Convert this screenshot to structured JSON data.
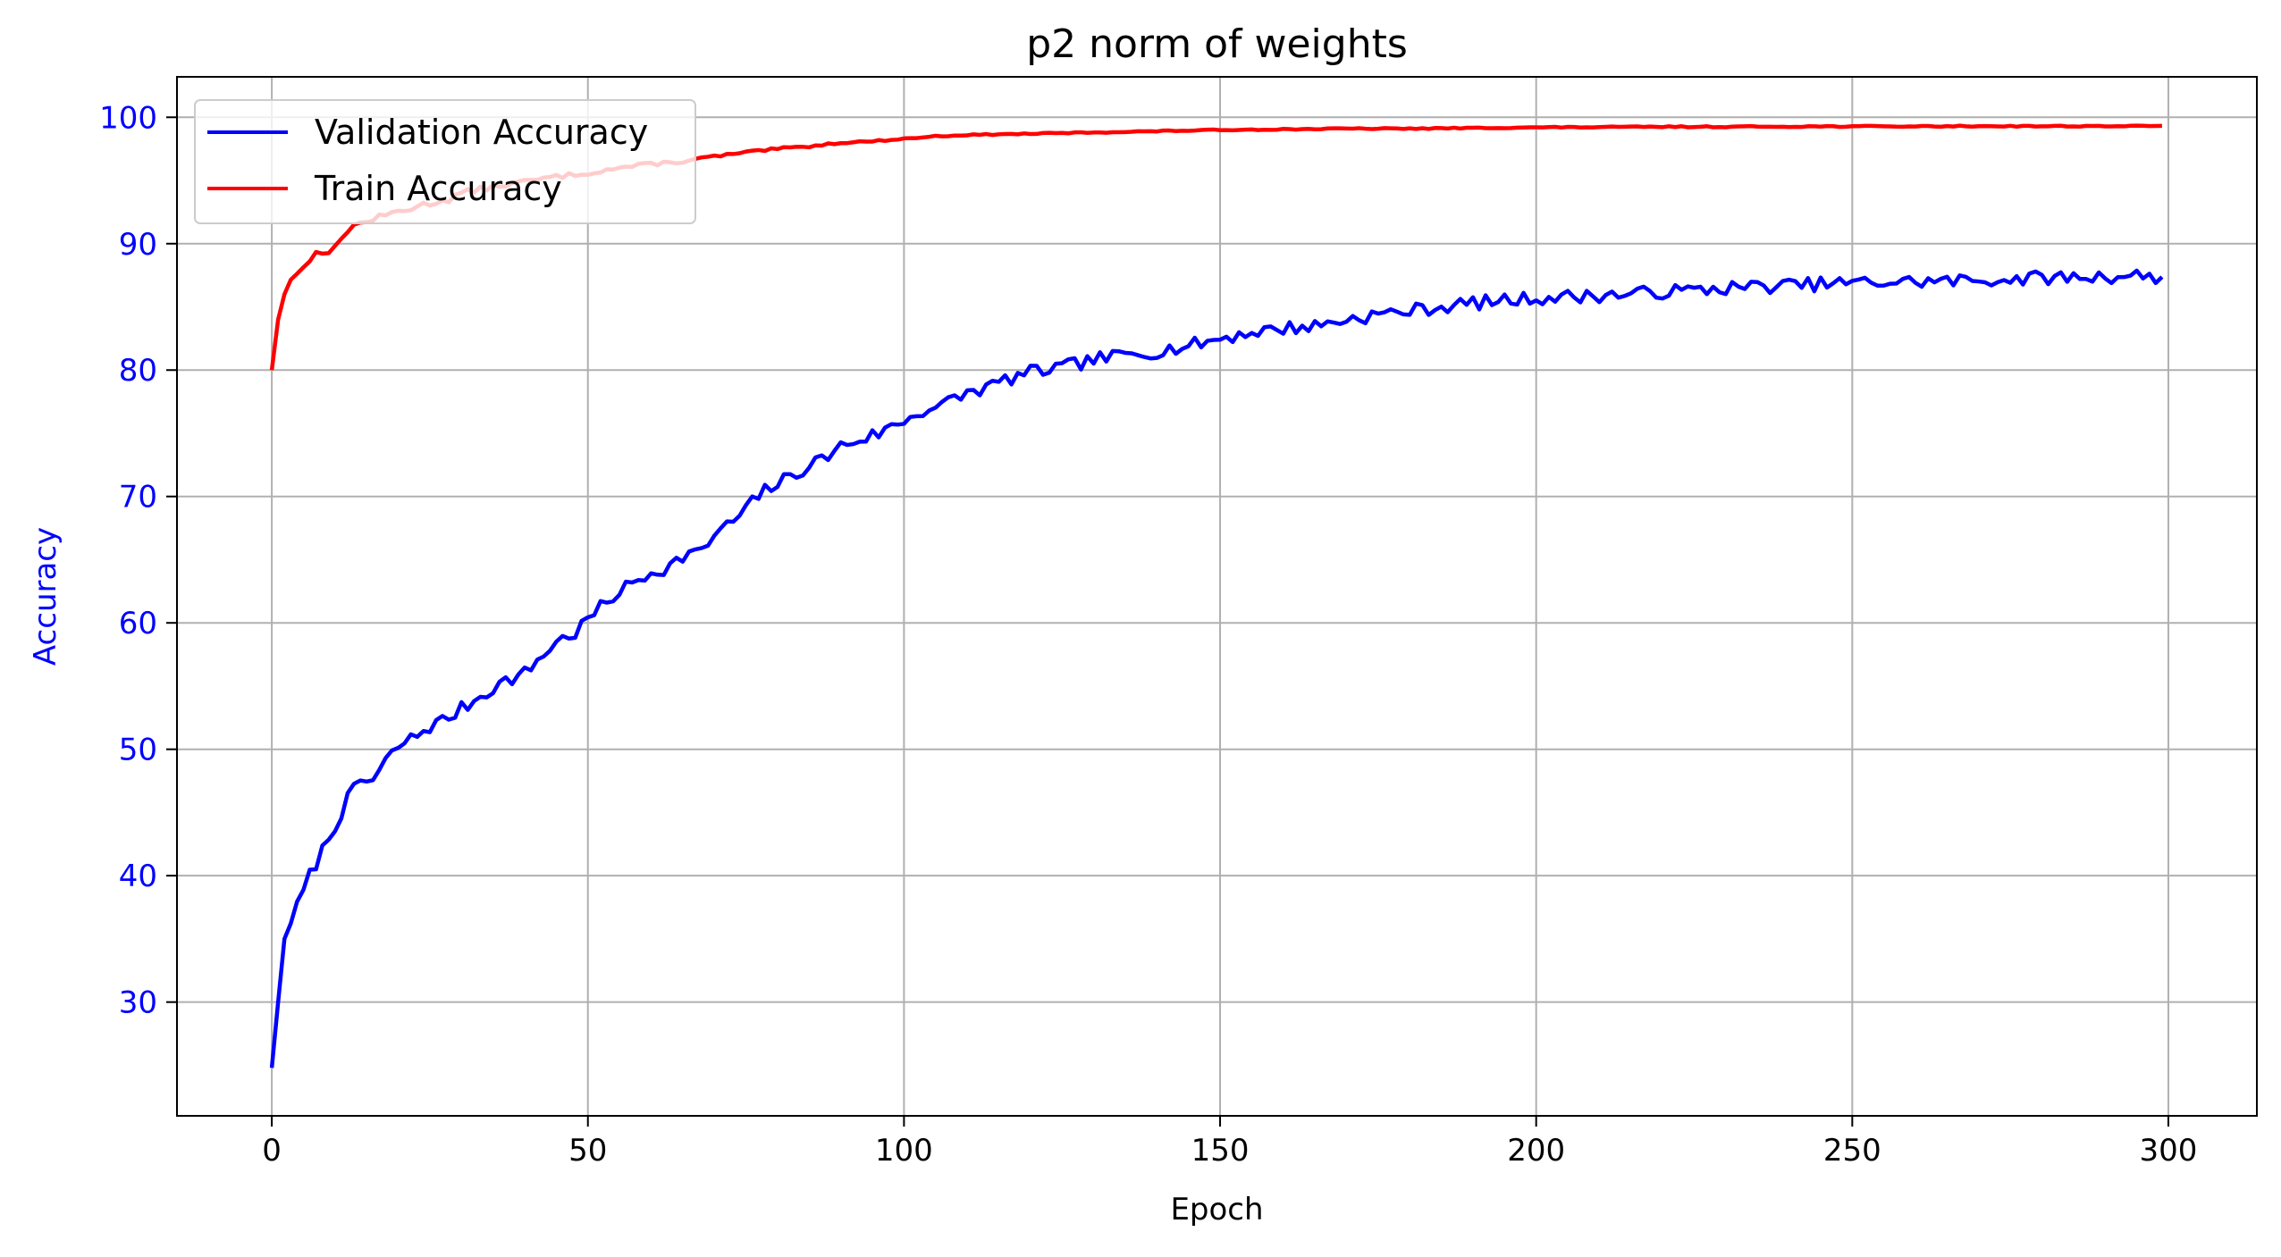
{
  "colors": {
    "validation": "#0000ff",
    "train": "#ff0000",
    "ytick": "#0000ff",
    "ylabel": "#0000ff",
    "grid": "#b0b0b0"
  },
  "chart_data": {
    "type": "line",
    "title": "p2 norm of weights",
    "xlabel": "Epoch",
    "ylabel": "Accuracy",
    "xlim": [
      -15,
      314
    ],
    "ylim": [
      21,
      103.2
    ],
    "xticks": [
      0,
      50,
      100,
      150,
      200,
      250,
      300
    ],
    "yticks": [
      30,
      40,
      50,
      60,
      70,
      80,
      90,
      100
    ],
    "xtick_labels": [
      "0",
      "50",
      "100",
      "150",
      "200",
      "250",
      "300"
    ],
    "ytick_labels": [
      "30",
      "40",
      "50",
      "60",
      "70",
      "80",
      "90",
      "100"
    ],
    "grid": true,
    "legend_position": "upper-left",
    "epochs": 300,
    "series": [
      {
        "name": "Validation Accuracy",
        "color": "#0000ff",
        "anchors": [
          [
            0,
            24.8
          ],
          [
            1,
            30
          ],
          [
            2,
            35
          ],
          [
            3,
            36.5
          ],
          [
            4,
            37.5
          ],
          [
            6,
            40
          ],
          [
            8,
            42
          ],
          [
            10,
            44
          ],
          [
            12,
            46
          ],
          [
            14,
            47.5
          ],
          [
            16,
            47.5
          ],
          [
            18,
            49
          ],
          [
            20,
            50.2
          ],
          [
            22,
            50.8
          ],
          [
            25,
            51.8
          ],
          [
            28,
            52.5
          ],
          [
            30,
            53.2
          ],
          [
            33,
            54.2
          ],
          [
            36,
            55.2
          ],
          [
            40,
            56
          ],
          [
            45,
            58.5
          ],
          [
            48,
            59.2
          ],
          [
            50,
            60.3
          ],
          [
            55,
            62.5
          ],
          [
            60,
            64
          ],
          [
            63,
            64.5
          ],
          [
            66,
            65.6
          ],
          [
            68,
            65.5
          ],
          [
            70,
            67
          ],
          [
            73,
            68
          ],
          [
            75,
            69
          ],
          [
            78,
            70.5
          ],
          [
            80,
            71
          ],
          [
            83,
            71.8
          ],
          [
            85,
            72.5
          ],
          [
            88,
            73.2
          ],
          [
            90,
            74
          ],
          [
            93,
            74.5
          ],
          [
            96,
            75
          ],
          [
            100,
            76
          ],
          [
            103,
            76.8
          ],
          [
            106,
            77.2
          ],
          [
            110,
            78.2
          ],
          [
            113,
            78.6
          ],
          [
            116,
            79.2
          ],
          [
            120,
            79.8
          ],
          [
            125,
            80.2
          ],
          [
            130,
            80.8
          ],
          [
            135,
            81.2
          ],
          [
            140,
            81.5
          ],
          [
            145,
            81.9
          ],
          [
            150,
            82.5
          ],
          [
            155,
            83
          ],
          [
            160,
            83.3
          ],
          [
            165,
            83.5
          ],
          [
            170,
            84
          ],
          [
            175,
            84.4
          ],
          [
            180,
            84.7
          ],
          [
            185,
            85
          ],
          [
            190,
            85.3
          ],
          [
            195,
            85.5
          ],
          [
            200,
            85.7
          ],
          [
            205,
            85.8
          ],
          [
            210,
            85.9
          ],
          [
            215,
            86
          ],
          [
            220,
            86.2
          ],
          [
            225,
            86.3
          ],
          [
            230,
            86.5
          ],
          [
            240,
            86.7
          ],
          [
            250,
            86.9
          ],
          [
            260,
            87
          ],
          [
            270,
            87.1
          ],
          [
            280,
            87.3
          ],
          [
            290,
            87.4
          ],
          [
            295,
            87.5
          ],
          [
            299,
            87.3
          ]
        ],
        "noise": 0.55,
        "seed": 7
      },
      {
        "name": "Train Accuracy",
        "color": "#ff0000",
        "anchors": [
          [
            0,
            80
          ],
          [
            1,
            84
          ],
          [
            2,
            86
          ],
          [
            3,
            87.3
          ],
          [
            5,
            88
          ],
          [
            7,
            89.6
          ],
          [
            9,
            89
          ],
          [
            11,
            90.6
          ],
          [
            13,
            91.4
          ],
          [
            15,
            91.8
          ],
          [
            18,
            92.2
          ],
          [
            20,
            92.6
          ],
          [
            22,
            92.8
          ],
          [
            25,
            93.2
          ],
          [
            28,
            93.5
          ],
          [
            30,
            94
          ],
          [
            33,
            94.3
          ],
          [
            36,
            94.6
          ],
          [
            40,
            94.9
          ],
          [
            45,
            95.3
          ],
          [
            50,
            95.6
          ],
          [
            55,
            96
          ],
          [
            60,
            96.3
          ],
          [
            65,
            96.5
          ],
          [
            70,
            96.9
          ],
          [
            75,
            97.2
          ],
          [
            80,
            97.5
          ],
          [
            85,
            97.7
          ],
          [
            90,
            98
          ],
          [
            95,
            98.1
          ],
          [
            100,
            98.3
          ],
          [
            105,
            98.5
          ],
          [
            110,
            98.6
          ],
          [
            120,
            98.7
          ],
          [
            130,
            98.8
          ],
          [
            140,
            98.9
          ],
          [
            150,
            99
          ],
          [
            160,
            99.05
          ],
          [
            170,
            99.1
          ],
          [
            180,
            99.1
          ],
          [
            190,
            99.15
          ],
          [
            200,
            99.2
          ],
          [
            210,
            99.22
          ],
          [
            220,
            99.25
          ],
          [
            230,
            99.25
          ],
          [
            240,
            99.27
          ],
          [
            250,
            99.28
          ],
          [
            260,
            99.28
          ],
          [
            270,
            99.3
          ],
          [
            280,
            99.3
          ],
          [
            290,
            99.3
          ],
          [
            299,
            99.3
          ]
        ],
        "noise": 0.3,
        "seed": 13
      }
    ]
  }
}
